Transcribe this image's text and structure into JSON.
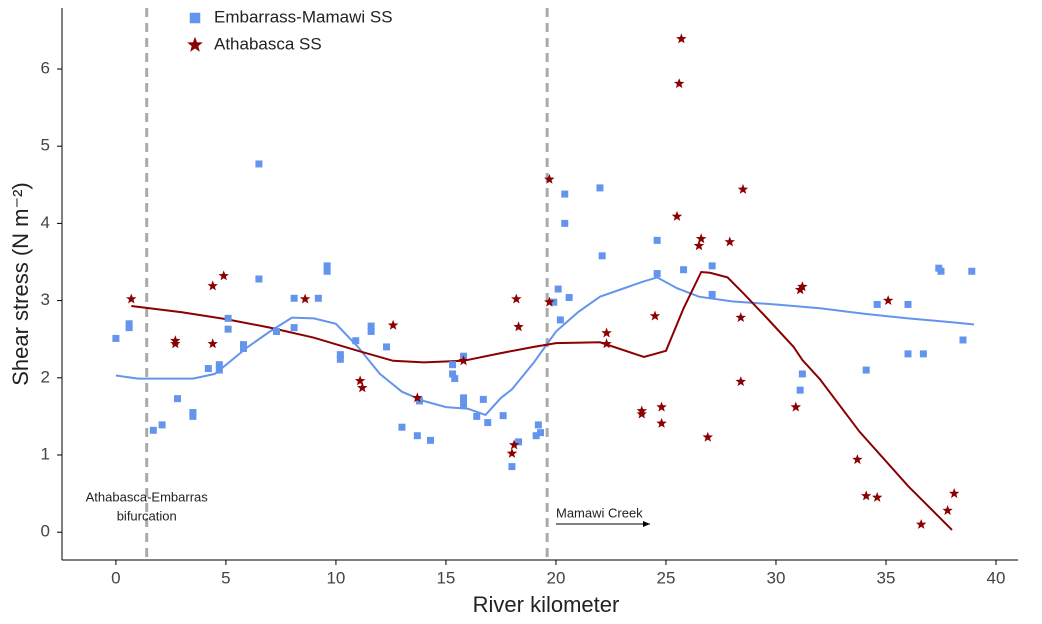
{
  "chart_data": {
    "type": "scatter",
    "xlabel": "River kilometer",
    "ylabel": "Shear stress (N m⁻²)",
    "xlim": [
      -2.45,
      41.0
    ],
    "ylim": [
      -0.36,
      6.79
    ],
    "xticks": [
      0,
      5,
      10,
      15,
      20,
      25,
      30,
      35,
      40
    ],
    "yticks": [
      0,
      1,
      2,
      3,
      4,
      5,
      6
    ],
    "grid": false,
    "legend": "upper left",
    "series": [
      {
        "name": "Embarrass-Mamawi SS",
        "color": "#6495ed",
        "marker": "square",
        "x": [
          0,
          0.6,
          0.6,
          1.7,
          2.1,
          2.8,
          3.5,
          3.5,
          4.2,
          4.7,
          4.7,
          5.1,
          5.1,
          5.8,
          5.8,
          6.5,
          6.5,
          7.3,
          8.1,
          8.1,
          9.2,
          9.6,
          9.6,
          10.2,
          10.2,
          10.9,
          11.6,
          11.6,
          12.3,
          13,
          13.7,
          13.8,
          14.3,
          15.3,
          15.3,
          15.4,
          15.8,
          15.8,
          15.8,
          16.4,
          16.7,
          16.9,
          17.6,
          18,
          18.3,
          19.1,
          19.2,
          19.3,
          19.9,
          20.1,
          20.2,
          20.4,
          20.4,
          20.6,
          22,
          22.1,
          24.6,
          24.6,
          25.8,
          27.1,
          27.1,
          31.2,
          31.1,
          34.1,
          34.6,
          36,
          36,
          36.7,
          37.4,
          37.5,
          38.5,
          38.9
        ],
        "values": [
          2.51,
          2.65,
          2.7,
          1.32,
          1.39,
          1.73,
          1.55,
          1.5,
          2.12,
          2.17,
          2.1,
          2.63,
          2.77,
          2.43,
          2.38,
          4.77,
          3.28,
          2.6,
          3.03,
          2.65,
          3.03,
          3.38,
          3.45,
          2.3,
          2.24,
          2.48,
          2.67,
          2.6,
          2.4,
          1.36,
          1.25,
          1.7,
          1.19,
          2.17,
          2.05,
          1.99,
          2.28,
          1.74,
          1.66,
          1.5,
          1.72,
          1.42,
          1.51,
          0.85,
          1.17,
          1.25,
          1.39,
          1.29,
          2.98,
          3.15,
          2.75,
          4.38,
          4.0,
          3.04,
          4.46,
          3.58,
          3.78,
          3.35,
          3.4,
          3.45,
          3.08,
          2.05,
          1.84,
          2.1,
          2.95,
          2.95,
          2.31,
          2.31,
          3.42,
          3.38,
          2.49,
          3.38
        ]
      },
      {
        "name": "Athabasca SS",
        "color": "#8b0000",
        "marker": "star",
        "x": [
          0.7,
          2.7,
          2.7,
          4.4,
          4.4,
          4.9,
          8.6,
          11.1,
          11.2,
          12.6,
          13.7,
          15.8,
          18.2,
          18.3,
          18.1,
          18,
          19.7,
          19.7,
          22.3,
          22.3,
          23.9,
          23.9,
          24.5,
          24.8,
          24.8,
          25.5,
          25.6,
          25.7,
          26.6,
          26.5,
          26.9,
          27.9,
          28.5,
          28.4,
          28.4,
          30.9,
          31.1,
          31.2,
          33.7,
          34.1,
          34.6,
          35.1,
          36.6,
          37.8,
          38.1
        ],
        "values": [
          3.02,
          2.48,
          2.44,
          3.19,
          2.44,
          3.32,
          3.02,
          1.96,
          1.87,
          2.68,
          1.74,
          2.22,
          3.02,
          2.66,
          1.13,
          1.02,
          4.57,
          2.98,
          2.58,
          2.44,
          1.57,
          1.53,
          2.8,
          1.62,
          1.41,
          4.09,
          5.81,
          6.39,
          3.8,
          3.71,
          1.23,
          3.76,
          4.44,
          2.78,
          1.95,
          1.62,
          3.14,
          3.18,
          0.94,
          0.47,
          0.45,
          3.0,
          0.1,
          0.28,
          0.5
        ]
      }
    ],
    "trend_lines": [
      {
        "color": "#6495ed",
        "x": [
          0,
          1,
          3.5,
          4.5,
          6,
          7,
          8,
          9,
          10,
          11,
          12,
          13,
          14,
          15,
          16,
          16.8,
          17.5,
          18,
          19,
          20,
          21,
          22,
          23,
          24,
          24.6,
          25.5,
          26.5,
          28,
          30,
          32,
          34,
          36,
          38,
          39
        ],
        "values": [
          2.03,
          1.99,
          1.99,
          2.05,
          2.4,
          2.6,
          2.78,
          2.77,
          2.7,
          2.4,
          2.05,
          1.82,
          1.7,
          1.62,
          1.6,
          1.52,
          1.74,
          1.85,
          2.2,
          2.6,
          2.85,
          3.05,
          3.15,
          3.25,
          3.3,
          3.16,
          3.05,
          2.99,
          2.95,
          2.9,
          2.83,
          2.77,
          2.72,
          2.69
        ]
      },
      {
        "color": "#8b0000",
        "x": [
          0.7,
          3,
          5,
          7,
          9,
          11,
          12.6,
          14,
          15.8,
          17.5,
          19,
          20,
          22,
          24,
          25,
          25.8,
          26.6,
          27,
          27.8,
          28.5,
          29.5,
          30.8,
          31.2,
          32,
          33.8,
          36,
          38
        ],
        "values": [
          2.93,
          2.85,
          2.76,
          2.65,
          2.52,
          2.35,
          2.22,
          2.2,
          2.22,
          2.32,
          2.4,
          2.45,
          2.46,
          2.27,
          2.35,
          2.9,
          3.37,
          3.36,
          3.3,
          3.1,
          2.8,
          2.4,
          2.23,
          1.98,
          1.3,
          0.6,
          0.03
        ]
      }
    ],
    "reference_lines": [
      1.4,
      19.6
    ],
    "annotations": [
      {
        "lines": [
          "Athabasca-Embarras",
          "bifurcation"
        ]
      },
      {
        "lines": [
          "Mamawi Creek"
        ]
      }
    ]
  }
}
